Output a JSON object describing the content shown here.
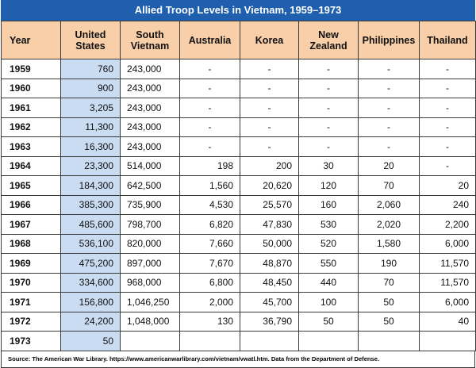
{
  "title": "Allied Troop Levels in Vietnam, 1959–1973",
  "headers": [
    "Year",
    "United\nStates",
    "South\nVietnam",
    "Australia",
    "Korea",
    "New\nZealand",
    "Philippines",
    "Thailand"
  ],
  "rows": [
    [
      "1959",
      "760",
      "243,000",
      "-",
      "-",
      "-",
      "-",
      "-"
    ],
    [
      "1960",
      "900",
      "243,000",
      "-",
      "-",
      "-",
      "-",
      "-"
    ],
    [
      "1961",
      "3,205",
      "243,000",
      "-",
      "-",
      "-",
      "-",
      "-"
    ],
    [
      "1962",
      "11,300",
      "243,000",
      "-",
      "-",
      "-",
      "-",
      "-"
    ],
    [
      "1963",
      "16,300",
      "243,000",
      "-",
      "-",
      "-",
      "-",
      "-"
    ],
    [
      "1964",
      "23,300",
      "514,000",
      "198",
      "200",
      "30",
      "20",
      "-"
    ],
    [
      "1965",
      "184,300",
      "642,500",
      "1,560",
      "20,620",
      "120",
      "70",
      "20"
    ],
    [
      "1966",
      "385,300",
      "735,900",
      "4,530",
      "25,570",
      "160",
      "2,060",
      "240"
    ],
    [
      "1967",
      "485,600",
      "798,700",
      "6,820",
      "47,830",
      "530",
      "2,020",
      "2,200"
    ],
    [
      "1968",
      "536,100",
      "820,000",
      "7,660",
      "50,000",
      "520",
      "1,580",
      "6,000"
    ],
    [
      "1969",
      "475,200",
      "897,000",
      "7,670",
      "48,870",
      "550",
      "190",
      "11,570"
    ],
    [
      "1970",
      "334,600",
      "968,000",
      "6,800",
      "48,450",
      "440",
      "70",
      "11,570"
    ],
    [
      "1971",
      "156,800",
      "1,046,250",
      "2,000",
      "45,700",
      "100",
      "50",
      "6,000"
    ],
    [
      "1972",
      "24,200",
      "1,048,000",
      "130",
      "36,790",
      "50",
      "50",
      "40"
    ],
    [
      "1973",
      "50",
      "",
      "",
      "",
      "",
      "",
      ""
    ]
  ],
  "source": "Source: The American War Library. https://www.americanwarlibrary.com/vietnam/vwatl.htm. Data from the Department of Defense.",
  "colors": {
    "title_bg": "#1f5fae",
    "header_bg": "#f8cfa8",
    "us_col_bg": "#c9dcf1"
  }
}
